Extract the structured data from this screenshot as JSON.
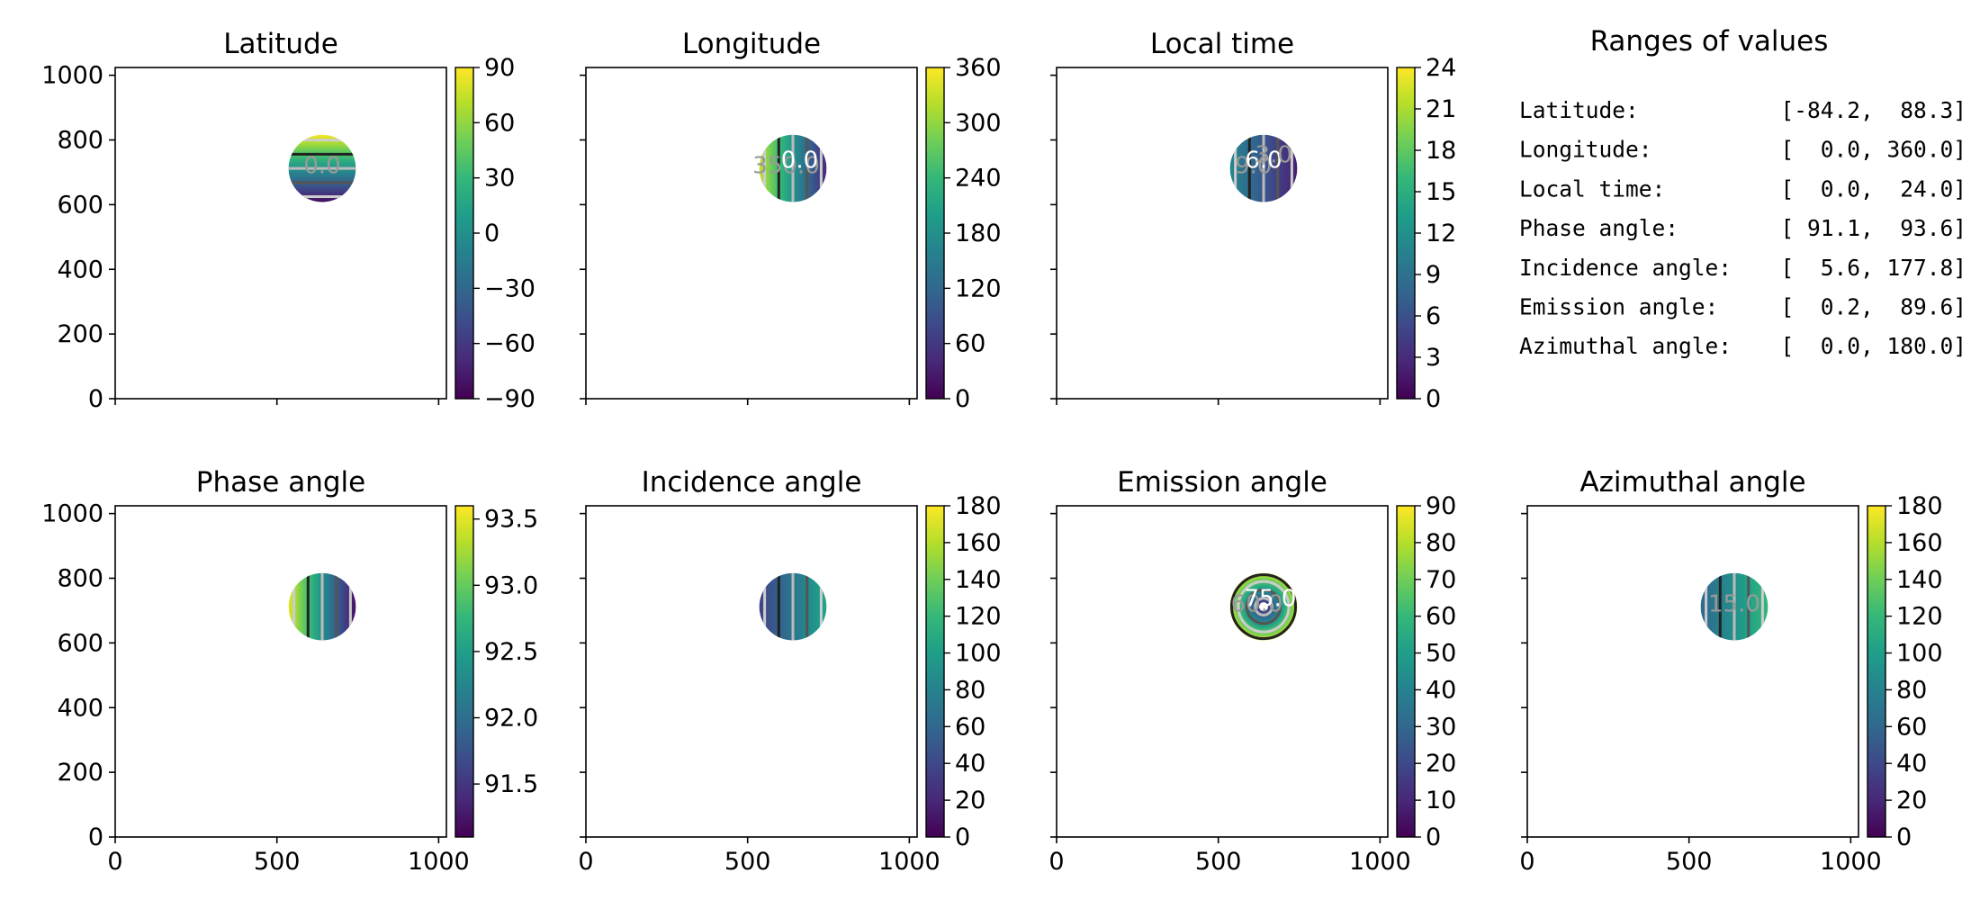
{
  "chart_data": {
    "type": "heatmap",
    "colormap": [
      "#440154",
      "#482878",
      "#3e4989",
      "#31688e",
      "#26828e",
      "#1f9e89",
      "#35b779",
      "#6ece58",
      "#b5de2b",
      "#fde725"
    ],
    "panels": [
      {
        "title": "Latitude",
        "xlim": [
          0,
          1024
        ],
        "ylim": [
          0,
          1024
        ],
        "xticks": [
          0,
          500,
          1000
        ],
        "yticks": [
          0,
          200,
          400,
          600,
          800,
          1000
        ],
        "x_ticklabels_shown": false,
        "y_ticklabels_shown": true,
        "disk": {
          "center": [
            640,
            712
          ],
          "radius": 104
        },
        "field": {
          "kind": "vertical",
          "from": 88.3,
          "to": -84.2
        },
        "colorbar": {
          "range": [
            -90,
            90
          ],
          "ticks": [
            90,
            60,
            30,
            0,
            -30,
            -60,
            -90
          ],
          "tick_labels": [
            "90",
            "60",
            "30",
            "0",
            "−30",
            "−60",
            "−90"
          ]
        },
        "contour_labels": [
          "0.0"
        ]
      },
      {
        "title": "Longitude",
        "xlim": [
          0,
          1024
        ],
        "ylim": [
          0,
          1024
        ],
        "xticks": [
          0,
          500,
          1000
        ],
        "yticks": [
          0,
          200,
          400,
          600,
          800,
          1000
        ],
        "x_ticklabels_shown": false,
        "y_ticklabels_shown": false,
        "disk": {
          "center": [
            640,
            712
          ],
          "radius": 104
        },
        "field": {
          "kind": "horizontal",
          "from": 330,
          "to": 40
        },
        "colorbar": {
          "range": [
            0,
            360
          ],
          "ticks": [
            360,
            300,
            240,
            180,
            120,
            60,
            0
          ],
          "tick_labels": [
            "360",
            "300",
            "240",
            "180",
            "120",
            "60",
            "0"
          ]
        },
        "contour_labels": [
          "350.0",
          "0.0"
        ]
      },
      {
        "title": "Local time",
        "xlim": [
          0,
          1024
        ],
        "ylim": [
          0,
          1024
        ],
        "xticks": [
          0,
          500,
          1000
        ],
        "yticks": [
          0,
          200,
          400,
          600,
          800,
          1000
        ],
        "x_ticklabels_shown": false,
        "y_ticklabels_shown": false,
        "disk": {
          "center": [
            640,
            712
          ],
          "radius": 104
        },
        "field": {
          "kind": "horizontal",
          "from": 11,
          "to": 2
        },
        "colorbar": {
          "range": [
            0,
            24
          ],
          "ticks": [
            24,
            21,
            18,
            15,
            12,
            9,
            6,
            3,
            0
          ],
          "tick_labels": [
            "24",
            "21",
            "18",
            "15",
            "12",
            "9",
            "6",
            "3",
            "0"
          ]
        },
        "contour_labels": [
          "9.0",
          "6.0",
          "3.0"
        ]
      },
      {
        "title": "Phase angle",
        "xlim": [
          0,
          1024
        ],
        "ylim": [
          0,
          1024
        ],
        "xticks": [
          0,
          500,
          1000
        ],
        "yticks": [
          0,
          200,
          400,
          600,
          800,
          1000
        ],
        "x_ticklabels_shown": true,
        "y_ticklabels_shown": true,
        "disk": {
          "center": [
            640,
            712
          ],
          "radius": 104
        },
        "field": {
          "kind": "horizontal",
          "from": 93.5,
          "to": 91.2
        },
        "colorbar": {
          "range": [
            91.1,
            93.6
          ],
          "ticks": [
            93.5,
            93.0,
            92.5,
            92.0,
            91.5
          ],
          "tick_labels": [
            "93.5",
            "93.0",
            "92.5",
            "92.0",
            "91.5"
          ]
        },
        "contour_labels": []
      },
      {
        "title": "Incidence angle",
        "xlim": [
          0,
          1024
        ],
        "ylim": [
          0,
          1024
        ],
        "xticks": [
          0,
          500,
          1000
        ],
        "yticks": [
          0,
          200,
          400,
          600,
          800,
          1000
        ],
        "x_ticklabels_shown": true,
        "y_ticklabels_shown": false,
        "disk": {
          "center": [
            640,
            712
          ],
          "radius": 104
        },
        "field": {
          "kind": "horizontal",
          "from": 35,
          "to": 105
        },
        "colorbar": {
          "range": [
            0,
            180
          ],
          "ticks": [
            180,
            160,
            140,
            120,
            100,
            80,
            60,
            40,
            20,
            0
          ],
          "tick_labels": [
            "180",
            "160",
            "140",
            "120",
            "100",
            "80",
            "60",
            "40",
            "20",
            "0"
          ]
        },
        "contour_labels": []
      },
      {
        "title": "Emission angle",
        "xlim": [
          0,
          1024
        ],
        "ylim": [
          0,
          1024
        ],
        "xticks": [
          0,
          500,
          1000
        ],
        "yticks": [
          0,
          200,
          400,
          600,
          800,
          1000
        ],
        "x_ticklabels_shown": true,
        "y_ticklabels_shown": false,
        "disk": {
          "center": [
            640,
            712
          ],
          "radius": 104
        },
        "field": {
          "kind": "radial",
          "from": 5,
          "to": 85
        },
        "colorbar": {
          "range": [
            0,
            90
          ],
          "ticks": [
            90,
            80,
            70,
            60,
            50,
            40,
            30,
            20,
            10,
            0
          ],
          "tick_labels": [
            "90",
            "80",
            "70",
            "60",
            "50",
            "40",
            "30",
            "20",
            "10",
            "0"
          ]
        },
        "contour_labels": [
          "60.0",
          "75.0"
        ]
      },
      {
        "title": "Azimuthal angle",
        "xlim": [
          0,
          1024
        ],
        "ylim": [
          0,
          1024
        ],
        "xticks": [
          0,
          500,
          1000
        ],
        "yticks": [
          0,
          200,
          400,
          600,
          800,
          1000
        ],
        "x_ticklabels_shown": true,
        "y_ticklabels_shown": false,
        "disk": {
          "center": [
            640,
            712
          ],
          "radius": 104
        },
        "field": {
          "kind": "horizontal",
          "from": 60,
          "to": 120
        },
        "colorbar": {
          "range": [
            0,
            180
          ],
          "ticks": [
            180,
            160,
            140,
            120,
            100,
            80,
            60,
            40,
            20,
            0
          ],
          "tick_labels": [
            "180",
            "160",
            "140",
            "120",
            "100",
            "80",
            "60",
            "40",
            "20",
            "0"
          ]
        },
        "contour_labels": [
          "15.0"
        ]
      }
    ],
    "ranges_table": {
      "title": "Ranges of values",
      "rows": [
        {
          "label": "Latitude:",
          "range": "[-84.2,  88.3]"
        },
        {
          "label": "Longitude:",
          "range": "[  0.0, 360.0]"
        },
        {
          "label": "Local time:",
          "range": "[  0.0,  24.0]"
        },
        {
          "label": "Phase angle:",
          "range": "[ 91.1,  93.6]"
        },
        {
          "label": "Incidence angle:",
          "range": "[  5.6, 177.8]"
        },
        {
          "label": "Emission angle:",
          "range": "[  0.2,  89.6]"
        },
        {
          "label": "Azimuthal angle:",
          "range": "[  0.0, 180.0]"
        }
      ]
    }
  }
}
